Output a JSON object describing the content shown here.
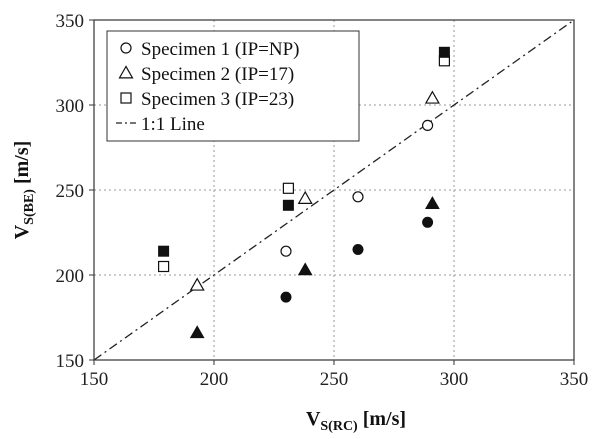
{
  "chart_data": {
    "type": "scatter",
    "xlabel": {
      "main": "V",
      "sub": "S(RC)",
      "unit": " [m/s]"
    },
    "ylabel": {
      "main": "V",
      "sub": "S(BE)",
      "unit": " [m/s]"
    },
    "xlim": [
      150,
      350
    ],
    "ylim": [
      150,
      350
    ],
    "xticks": [
      150,
      200,
      250,
      300,
      350
    ],
    "yticks": [
      150,
      200,
      250,
      300,
      350
    ],
    "grid": true,
    "legend_position": "top-left",
    "legend": [
      {
        "label": "Specimen 1 (IP=NP)",
        "marker": "circle-open"
      },
      {
        "label": "Specimen 2 (IP=17)",
        "marker": "triangle-open"
      },
      {
        "label": "Specimen 3 (IP=23)",
        "marker": "square-open"
      },
      {
        "label": "1:1 Line",
        "marker": "dashdot-line"
      }
    ],
    "reference_line": {
      "label": "1:1 Line",
      "x": [
        150,
        350
      ],
      "y": [
        150,
        350
      ],
      "style": "dashdot"
    },
    "series": [
      {
        "group": "Specimen 1 (IP=NP)",
        "marker": "circle",
        "fill": "open",
        "points": [
          [
            230,
            214
          ],
          [
            260,
            246
          ],
          [
            289,
            288
          ]
        ]
      },
      {
        "group": "Specimen 1 (IP=NP)",
        "marker": "circle",
        "fill": "filled",
        "points": [
          [
            230,
            187
          ],
          [
            260,
            215
          ],
          [
            289,
            231
          ]
        ]
      },
      {
        "group": "Specimen 2 (IP=17)",
        "marker": "triangle",
        "fill": "open",
        "points": [
          [
            193,
            194
          ],
          [
            238,
            245
          ],
          [
            291,
            304
          ]
        ]
      },
      {
        "group": "Specimen 2 (IP=17)",
        "marker": "triangle",
        "fill": "filled",
        "points": [
          [
            193,
            166
          ],
          [
            238,
            203
          ],
          [
            291,
            242
          ]
        ]
      },
      {
        "group": "Specimen 3 (IP=23)",
        "marker": "square",
        "fill": "open",
        "points": [
          [
            179,
            205
          ],
          [
            231,
            251
          ],
          [
            296,
            326
          ]
        ]
      },
      {
        "group": "Specimen 3 (IP=23)",
        "marker": "square",
        "fill": "filled",
        "points": [
          [
            179,
            214
          ],
          [
            231,
            241
          ],
          [
            296,
            331
          ]
        ]
      }
    ],
    "colors": {
      "marker": "#111111",
      "grid": "#9a9a9a",
      "axis": "#333333"
    }
  }
}
